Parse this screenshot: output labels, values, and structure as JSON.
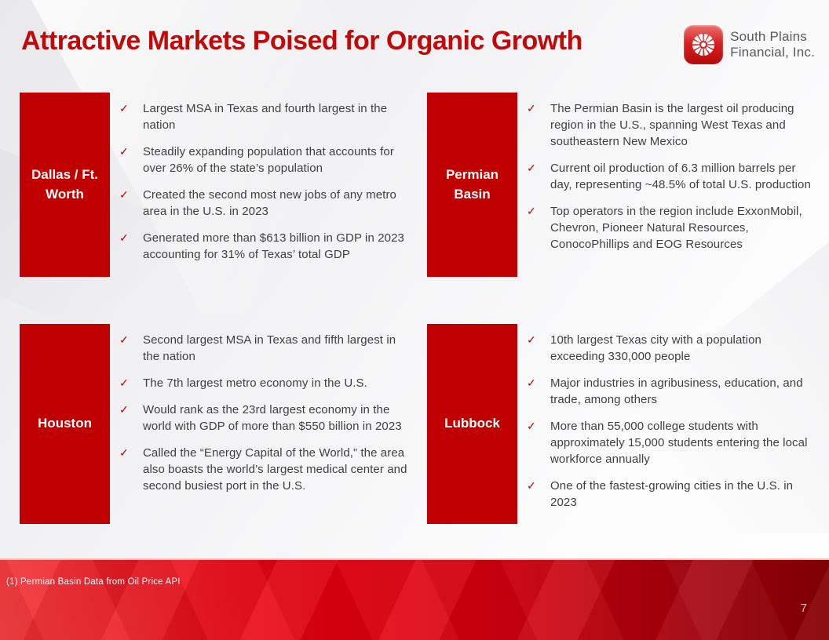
{
  "slide": {
    "title": "Attractive Markets Poised for Organic Growth",
    "footnote": "(1) Permian Basin Data from Oil Price API",
    "page_number": "7"
  },
  "logo": {
    "line1": "South Plains",
    "line2": "Financial, Inc.",
    "icon": "pinwheel-icon"
  },
  "colors": {
    "title_red": "#c00909",
    "box_red": "#c00000",
    "check_red": "#c00000",
    "body_text": "#3f3f3f",
    "logo_text_gray": "#595959",
    "footer_red_left": "#e80011",
    "footer_red_right": "#860004"
  },
  "bullet_marker": "✓",
  "sections": [
    {
      "label": "Dallas / Ft. Worth",
      "bullets": [
        "Largest MSA in Texas and fourth largest in the nation",
        "Steadily expanding population that accounts for over 26% of the state’s population",
        "Created the second most new jobs of any metro area in the U.S. in 2023",
        "Generated more than $613 billion in GDP in 2023 accounting for 31% of Texas’ total GDP"
      ]
    },
    {
      "label": "Permian Basin",
      "bullets": [
        "The Permian Basin is the largest oil producing region in the U.S., spanning West Texas and southeastern New Mexico",
        "Current oil production of 6.3 million barrels per day, representing ~48.5% of total U.S. production",
        "Top operators in the region include ExxonMobil, Chevron, Pioneer Natural Resources, ConocoPhillips and EOG Resources"
      ]
    },
    {
      "label": "Houston",
      "bullets": [
        "Second largest MSA in Texas and fifth largest in the nation",
        "The 7th largest metro economy in the U.S.",
        "Would rank as the 23rd largest economy in the world with GDP of more than $550 billion in 2023",
        "Called the “Energy Capital of the World,” the area also boasts the world’s largest medical center and second busiest port in the U.S."
      ]
    },
    {
      "label": "Lubbock",
      "bullets": [
        "10th largest Texas city with a population exceeding 330,000 people",
        "Major industries in agribusiness, education, and trade, among others",
        "More than 55,000 college students with approximately 15,000 students entering the local workforce annually",
        "One of the fastest-growing cities in the U.S. in 2023"
      ]
    }
  ]
}
